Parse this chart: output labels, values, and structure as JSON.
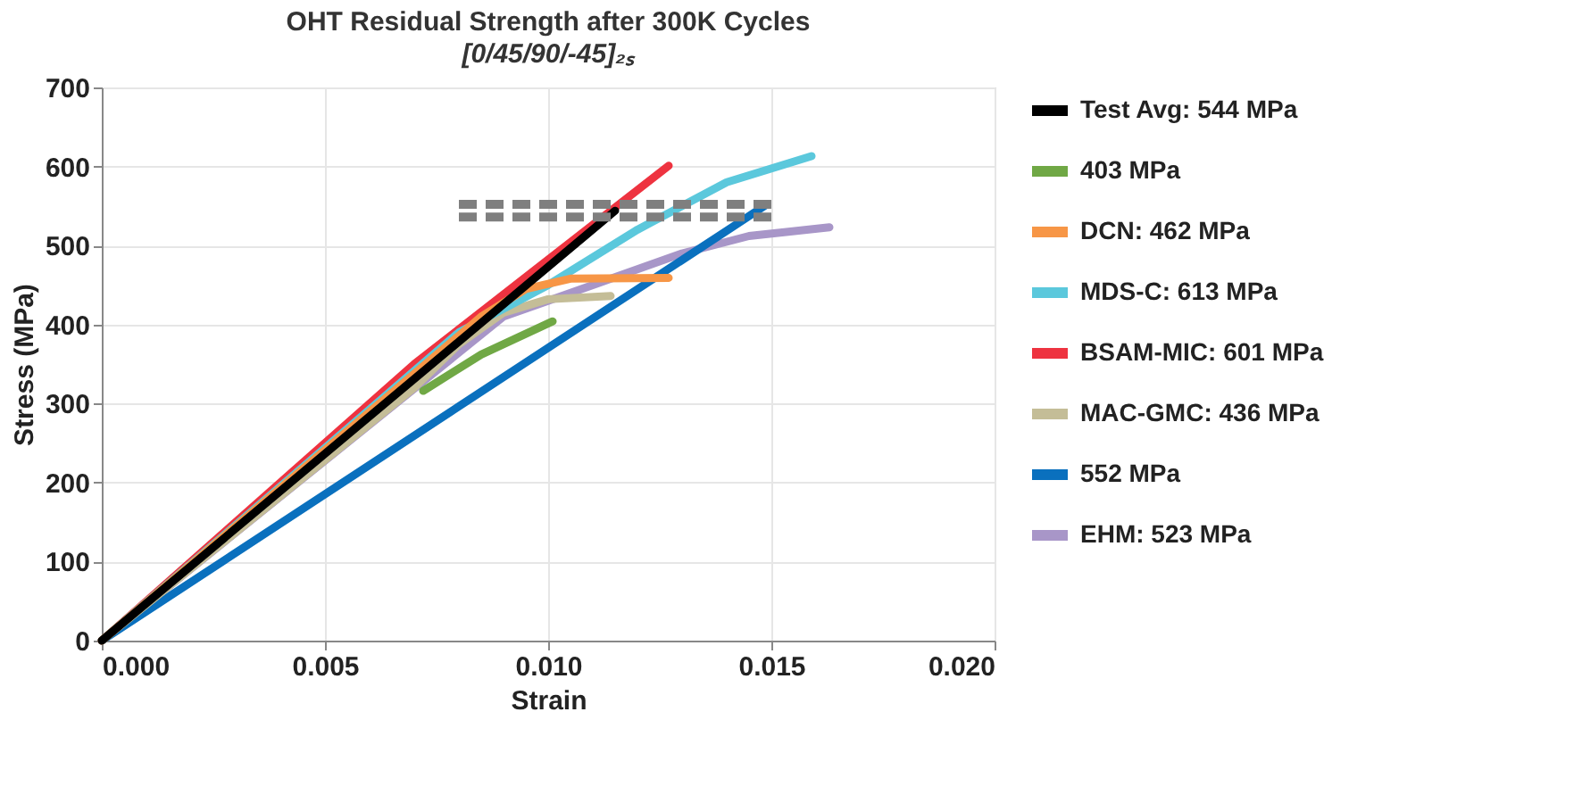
{
  "chart_data": {
    "type": "line",
    "title": "OHT Residual Strength after 300K Cycles",
    "subtitle": "[0/45/90/-45]₂ₛ",
    "xlabel": "Strain",
    "ylabel": "Stress (MPa)",
    "xlim": [
      0,
      0.02
    ],
    "xticks": [
      {
        "value": 0,
        "label": "0.000"
      },
      {
        "value": 0.005,
        "label": "0.005"
      },
      {
        "value": 0.01,
        "label": "0.010"
      },
      {
        "value": 0.015,
        "label": "0.015"
      },
      {
        "value": 0.02,
        "label": "0.020"
      }
    ],
    "ylim": [
      0,
      700
    ],
    "yticks": [
      0,
      100,
      200,
      300,
      400,
      500,
      600,
      700
    ],
    "grid": true,
    "legend": "right",
    "marker": "none",
    "series": [
      {
        "name": "Test Avg: 544 MPa",
        "color": "#000000",
        "x": [
          0,
          0.0115
        ],
        "values": [
          0,
          544
        ]
      },
      {
        "name": "403 MPa",
        "color": "#70a845",
        "x": [
          0.0072,
          0.0085,
          0.0101
        ],
        "values": [
          316,
          362,
          404
        ]
      },
      {
        "name": "DCN: 462 MPa",
        "color": "#f79646",
        "x": [
          0,
          0.0085,
          0.0095,
          0.0105,
          0.0127
        ],
        "values": [
          0,
          410,
          445,
          458,
          459
        ]
      },
      {
        "name": "MDS-C: 613 MPa",
        "color": "#5bc8dc",
        "x": [
          0,
          0.008,
          0.01,
          0.012,
          0.014,
          0.0159
        ],
        "values": [
          0,
          390,
          450,
          520,
          580,
          613
        ]
      },
      {
        "name": "BSAM-MIC: 601 MPa",
        "color": "#ee3340",
        "x": [
          0,
          0.007,
          0.0127
        ],
        "values": [
          0,
          350,
          601
        ]
      },
      {
        "name": "MAC-GMC: 436 MPa",
        "color": "#c4bd97",
        "x": [
          0,
          0.007,
          0.008,
          0.009,
          0.01,
          0.0114
        ],
        "values": [
          0,
          320,
          375,
          415,
          432,
          436
        ]
      },
      {
        "name": "552 MPa",
        "color": "#0a70be",
        "x": [
          0,
          0.0149
        ],
        "values": [
          0,
          552
        ]
      },
      {
        "name": "EHM: 523 MPa",
        "color": "#a896c8",
        "x": [
          0,
          0.009,
          0.011,
          0.013,
          0.0145,
          0.0163
        ],
        "values": [
          0,
          410,
          450,
          490,
          512,
          523
        ]
      },
      {
        "color": "#7f7f7f",
        "line_style": "dashed",
        "x": [
          0.008,
          0.015
        ],
        "values": [
          552,
          552
        ]
      },
      {
        "color": "#7f7f7f",
        "line_style": "dashed",
        "x": [
          0.008,
          0.015
        ],
        "values": [
          536,
          536
        ]
      }
    ]
  }
}
